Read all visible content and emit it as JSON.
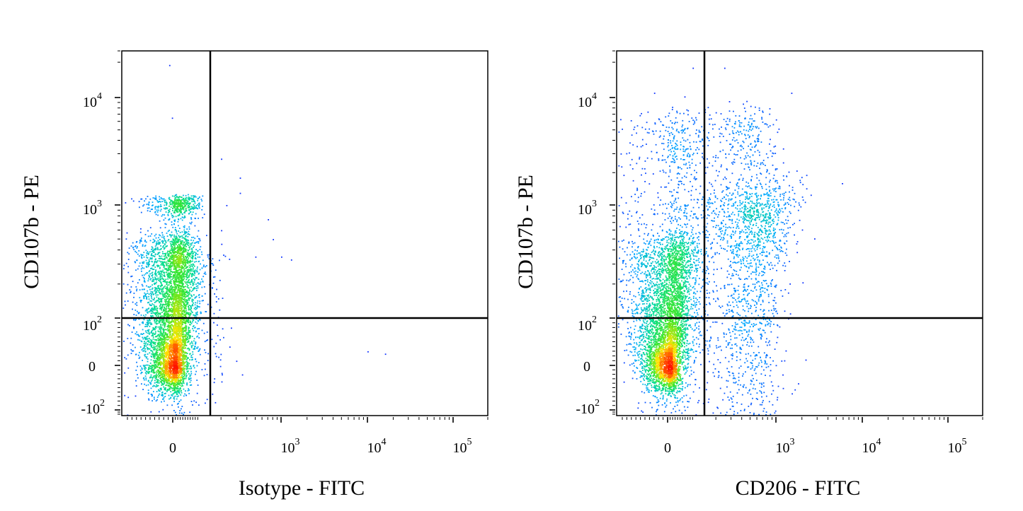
{
  "chart_data": [
    {
      "type": "scatter",
      "style": "density-pseudocolor",
      "xlabel": "Isotype - FITC",
      "ylabel": "CD107b - PE",
      "x_scale": "biexponential",
      "y_scale": "biexponential",
      "xlim": [
        -100,
        200000
      ],
      "ylim": [
        -150,
        25000
      ],
      "x_ticks": [
        {
          "value": 0,
          "base": "0",
          "exp": ""
        },
        {
          "value": 1000,
          "base": "10",
          "exp": "3"
        },
        {
          "value": 10000,
          "base": "10",
          "exp": "4"
        },
        {
          "value": 100000,
          "base": "10",
          "exp": "5"
        }
      ],
      "y_ticks": [
        {
          "value": -100,
          "base": "-10",
          "exp": "2"
        },
        {
          "value": 0,
          "base": "0",
          "exp": ""
        },
        {
          "value": 100,
          "base": "10",
          "exp": "2"
        },
        {
          "value": 1000,
          "base": "10",
          "exp": "3"
        },
        {
          "value": 10000,
          "base": "10",
          "exp": "4"
        }
      ],
      "gate": {
        "x": 150,
        "y": 100
      },
      "populations": [
        {
          "cx": -3,
          "cy": 0,
          "sx": 25,
          "sy": 32,
          "n": 1400
        },
        {
          "cx": 0,
          "cy": 80,
          "sx": 40,
          "sy": 55,
          "n": 1800
        },
        {
          "cx": 10,
          "cy": 250,
          "sx": 45,
          "sy": 160,
          "n": 2200
        },
        {
          "cx": 20,
          "cy": 1000,
          "sx": 45,
          "sy": 130,
          "n": 450
        },
        {
          "cx": 130,
          "cy": 120,
          "sx": 50,
          "sy": 140,
          "n": 140
        }
      ],
      "outliers": [
        {
          "x": -8,
          "y": 19000
        },
        {
          "x": -2,
          "y": 6500
        },
        {
          "x": 200,
          "y": 2700
        },
        {
          "x": 330,
          "y": 1800
        },
        {
          "x": 330,
          "y": 1300
        },
        {
          "x": 700,
          "y": 750
        },
        {
          "x": 800,
          "y": 500
        },
        {
          "x": 500,
          "y": 350
        },
        {
          "x": 1000,
          "y": 350
        },
        {
          "x": 1300,
          "y": 330
        },
        {
          "x": 10000,
          "y": 30
        },
        {
          "x": 16000,
          "y": 25
        },
        {
          "x": 250,
          "y": 40
        },
        {
          "x": 350,
          "y": -20
        },
        {
          "x": 300,
          "y": 10
        },
        {
          "x": 260,
          "y": 80
        },
        {
          "x": 200,
          "y": 600
        },
        {
          "x": 230,
          "y": 1000
        }
      ]
    },
    {
      "type": "scatter",
      "style": "density-pseudocolor",
      "xlabel": "CD206 - FITC",
      "ylabel": "CD107b - PE",
      "x_scale": "biexponential",
      "y_scale": "biexponential",
      "xlim": [
        -100,
        200000
      ],
      "ylim": [
        -150,
        25000
      ],
      "x_ticks": [
        {
          "value": 0,
          "base": "0",
          "exp": ""
        },
        {
          "value": 1000,
          "base": "10",
          "exp": "3"
        },
        {
          "value": 10000,
          "base": "10",
          "exp": "4"
        },
        {
          "value": 100000,
          "base": "10",
          "exp": "5"
        }
      ],
      "y_ticks": [
        {
          "value": -100,
          "base": "-10",
          "exp": "2"
        },
        {
          "value": 0,
          "base": "0",
          "exp": ""
        },
        {
          "value": 100,
          "base": "10",
          "exp": "2"
        },
        {
          "value": 1000,
          "base": "10",
          "exp": "3"
        },
        {
          "value": 10000,
          "base": "10",
          "exp": "4"
        }
      ],
      "gate": {
        "x": 150,
        "y": 100
      },
      "populations": [
        {
          "cx": -3,
          "cy": 0,
          "sx": 25,
          "sy": 32,
          "n": 1500
        },
        {
          "cx": 0,
          "cy": 80,
          "sx": 40,
          "sy": 55,
          "n": 1600
        },
        {
          "cx": 20,
          "cy": 250,
          "sx": 55,
          "sy": 150,
          "n": 1600
        },
        {
          "cx": 400,
          "cy": 500,
          "sx": 380,
          "sy": 450,
          "n": 1500
        },
        {
          "cx": 300,
          "cy": 3000,
          "sx": 320,
          "sy": 2500,
          "n": 500
        },
        {
          "cx": 350,
          "cy": 60,
          "sx": 280,
          "sy": 90,
          "n": 500
        },
        {
          "cx": 1200,
          "cy": 1000,
          "sx": 600,
          "sy": 700,
          "n": 150
        },
        {
          "cx": 40,
          "cy": 2500,
          "sx": 60,
          "sy": 2200,
          "n": 300
        }
      ],
      "outliers": [
        {
          "x": 100,
          "y": 18000
        },
        {
          "x": 250,
          "y": 18000
        },
        {
          "x": -30,
          "y": 11000
        },
        {
          "x": 5800,
          "y": 1600
        },
        {
          "x": 1800,
          "y": -40
        },
        {
          "x": 1500,
          "y": 11000
        }
      ]
    }
  ]
}
